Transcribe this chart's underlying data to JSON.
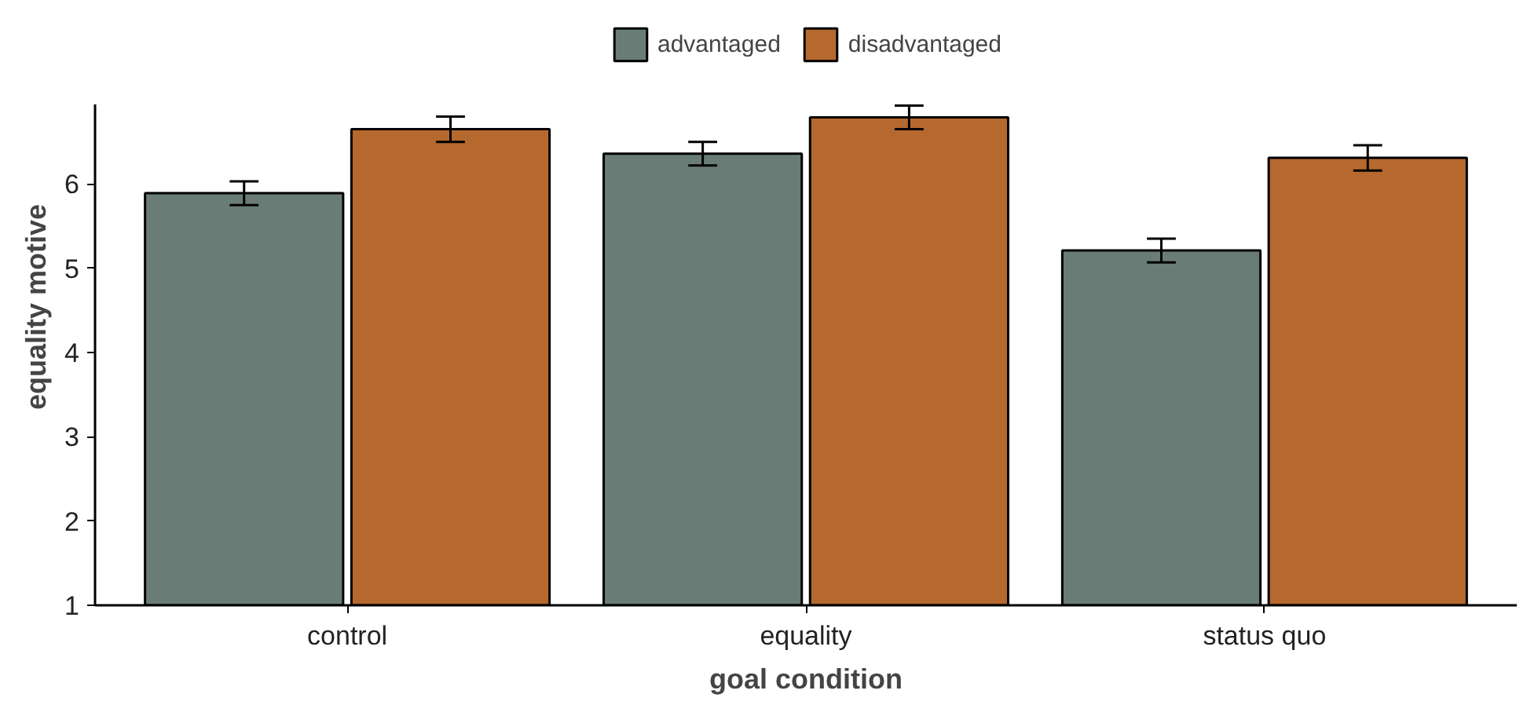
{
  "chart_data": {
    "type": "bar",
    "xlabel": "goal condition",
    "ylabel": "equality motive",
    "categories": [
      "control",
      "equality",
      "status quo"
    ],
    "series": [
      {
        "name": "advantaged",
        "color": "#697d76",
        "values": [
          5.89,
          6.36,
          5.21
        ],
        "errors": [
          0.14,
          0.14,
          0.14
        ]
      },
      {
        "name": "disadvantaged",
        "color": "#b5692e",
        "values": [
          6.65,
          6.79,
          6.31
        ],
        "errors": [
          0.15,
          0.14,
          0.15
        ]
      }
    ],
    "ylim": [
      1,
      6.95
    ],
    "yticks": [
      1,
      2,
      3,
      4,
      5,
      6
    ],
    "grid": false,
    "legend": "top"
  }
}
